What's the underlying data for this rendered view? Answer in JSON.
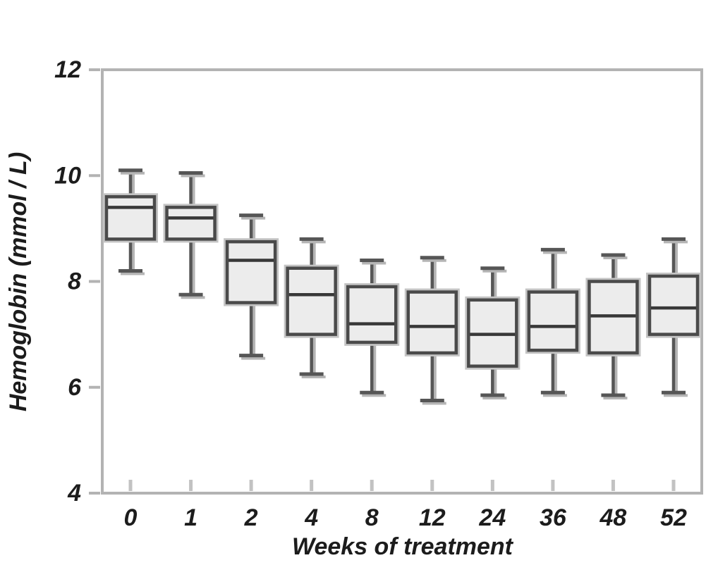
{
  "chart_data": {
    "type": "boxplot",
    "title": "",
    "xlabel": "Weeks of treatment",
    "ylabel": "Hemoglobin (mmol / L)",
    "categories": [
      "0",
      "1",
      "2",
      "4",
      "8",
      "12",
      "24",
      "36",
      "48",
      "52"
    ],
    "y_ticks": [
      4,
      6,
      8,
      10,
      12
    ],
    "ylim": [
      4,
      12
    ],
    "grid": false,
    "legend": null,
    "series": [
      {
        "week": "0",
        "low": 8.2,
        "q1": 8.8,
        "median": 9.4,
        "q3": 9.6,
        "high": 10.1
      },
      {
        "week": "1",
        "low": 7.75,
        "q1": 8.8,
        "median": 9.2,
        "q3": 9.4,
        "high": 10.05
      },
      {
        "week": "2",
        "low": 6.6,
        "q1": 7.6,
        "median": 8.4,
        "q3": 8.75,
        "high": 9.25
      },
      {
        "week": "4",
        "low": 6.25,
        "q1": 7.0,
        "median": 7.75,
        "q3": 8.25,
        "high": 8.8
      },
      {
        "week": "8",
        "low": 5.9,
        "q1": 6.85,
        "median": 7.2,
        "q3": 7.9,
        "high": 8.4
      },
      {
        "week": "12",
        "low": 5.75,
        "q1": 6.65,
        "median": 7.15,
        "q3": 7.8,
        "high": 8.45
      },
      {
        "week": "24",
        "low": 5.85,
        "q1": 6.4,
        "median": 7.0,
        "q3": 7.65,
        "high": 8.25
      },
      {
        "week": "36",
        "low": 5.9,
        "q1": 6.7,
        "median": 7.15,
        "q3": 7.8,
        "high": 8.6
      },
      {
        "week": "48",
        "low": 5.85,
        "q1": 6.65,
        "median": 7.35,
        "q3": 8.0,
        "high": 8.5
      },
      {
        "week": "52",
        "low": 5.9,
        "q1": 7.0,
        "median": 7.5,
        "q3": 8.1,
        "high": 8.8
      }
    ],
    "colors": {
      "box_fill": "#ececec",
      "box_border": "#4a4a4a",
      "box_outer_edge": "#c4c4c4",
      "median": "#383838",
      "whisker": "#565656",
      "whisker_halo": "#b5b5b5",
      "axis_frame": "#b3b3b3",
      "tick": "#c2c2c2",
      "text": "#1c1c1c"
    }
  }
}
